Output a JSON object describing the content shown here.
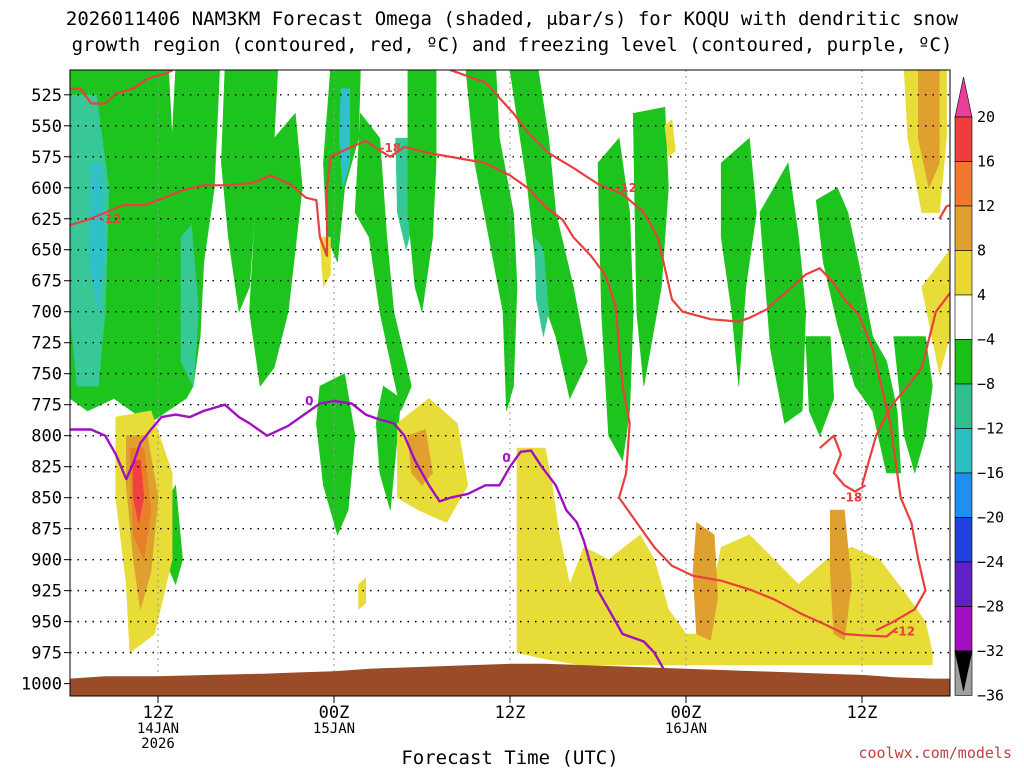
{
  "chart_data": {
    "type": "heatmap",
    "title_line1": "2026011406 NAM3KM Forecast Omega (shaded, μbar/s) for KOQU with dendritic snow",
    "title_line2": "growth region (contoured, red, ºC) and freezing level (contoured, purple, ºC)",
    "xlabel": "Forecast Time (UTC)",
    "credit": "coolwx.com/models",
    "y_ticks": [
      "525",
      "550",
      "575",
      "600",
      "625",
      "650",
      "675",
      "700",
      "725",
      "750",
      "775",
      "800",
      "825",
      "850",
      "875",
      "900",
      "925",
      "950",
      "975",
      "1000"
    ],
    "y_range_hpa": [
      505,
      1010
    ],
    "x_range_hours": [
      7,
      57
    ],
    "x_ticks": [
      {
        "hour": 12,
        "line1": "12Z",
        "line2": "14JAN",
        "line3": "2026"
      },
      {
        "hour": 22,
        "line1": "00Z",
        "line2": "15JAN",
        "line3": ""
      },
      {
        "hour": 32,
        "line1": "12Z",
        "line2": "",
        "line3": ""
      },
      {
        "hour": 42,
        "line1": "00Z",
        "line2": "16JAN",
        "line3": ""
      },
      {
        "hour": 52,
        "line1": "12Z",
        "line2": "",
        "line3": ""
      }
    ],
    "colorbar": {
      "labels": [
        "20",
        "16",
        "12",
        "8",
        "4",
        "−4",
        "−8",
        "−12",
        "−16",
        "−20",
        "−24",
        "−28",
        "−32",
        "−36"
      ],
      "colors": [
        "#e8409a",
        "#f03c3c",
        "#f07830",
        "#e0a030",
        "#e8d830",
        "#ffffff",
        "#18c018",
        "#30c090",
        "#28c0c0",
        "#2090f0",
        "#2040e0",
        "#6020c8",
        "#a010c0",
        "#a0a0a0",
        "#000000"
      ]
    },
    "shading": {
      "green": "#1ec41e",
      "teal": "#38c898",
      "cyan": "#30c0c8",
      "yellow": "#e8dc38",
      "orange": "#e0a030",
      "darkorange": "#e88028",
      "red": "#f04040",
      "terrain": "#9a4c28"
    },
    "contours": {
      "dgz_color": "#e8403c",
      "freezing_color": "#a010c0",
      "labels_dgz": [
        "-12",
        "-18",
        "-12",
        "-18",
        "-12"
      ],
      "labels_freezing": [
        "0",
        "0"
      ]
    }
  }
}
